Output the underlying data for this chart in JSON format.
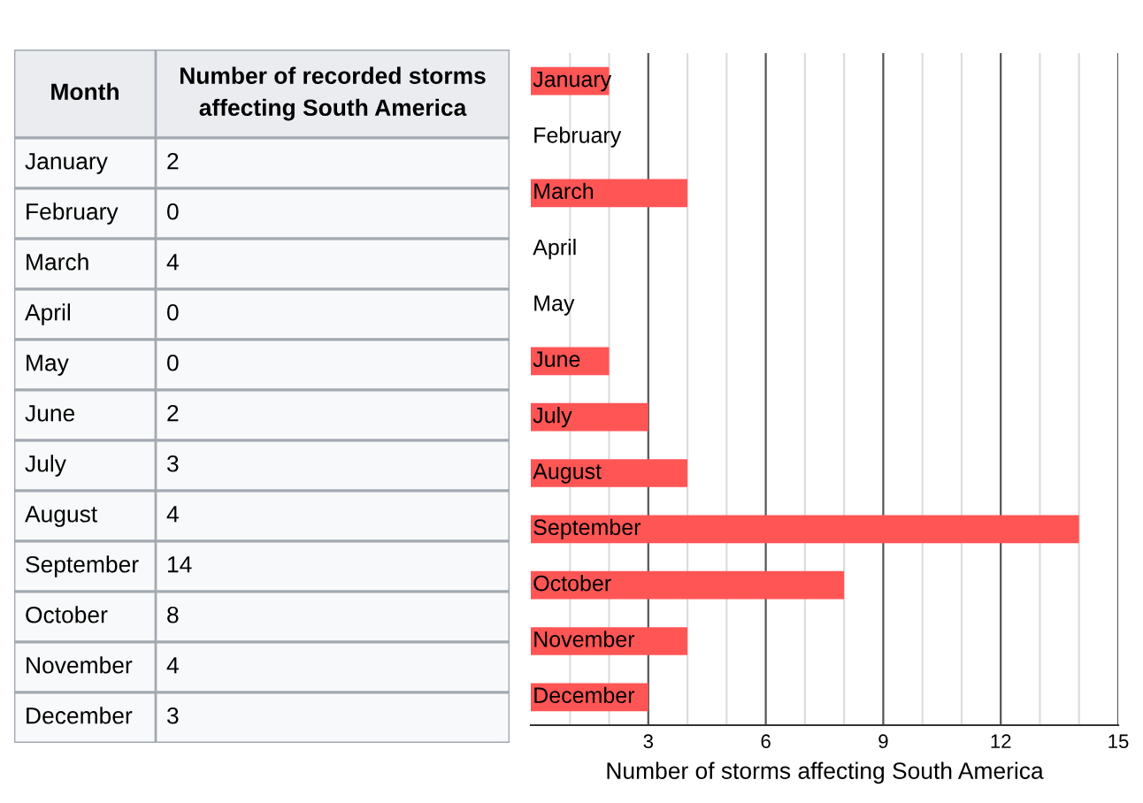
{
  "chart_data": [
    {
      "type": "other",
      "categories": [
        "January",
        "February",
        "March",
        "April",
        "May",
        "June",
        "July",
        "August",
        "September",
        "October",
        "November",
        "December"
      ],
      "values": [
        2,
        0,
        4,
        0,
        0,
        2,
        3,
        4,
        14,
        8,
        4,
        3
      ],
      "value_labels": [
        "2",
        "0",
        "4",
        "0",
        "0",
        "2",
        "3",
        "4",
        "14",
        "8",
        "4",
        "3"
      ],
      "annotations": [
        "Month",
        "Number of recorded storms affecting South America"
      ]
    },
    {
      "type": "bar",
      "orientation": "horizontal",
      "categories": [
        "January",
        "February",
        "March",
        "April",
        "May",
        "June",
        "July",
        "August",
        "September",
        "October",
        "November",
        "December"
      ],
      "values": [
        2,
        0,
        4,
        0,
        0,
        2,
        3,
        4,
        14,
        8,
        4,
        3
      ],
      "color": "#ff5555",
      "xlabel": "Number of storms affecting South America",
      "xlim": [
        0,
        15
      ],
      "xticks": [
        {
          "value": 1,
          "label": null
        },
        {
          "value": 2,
          "label": null
        },
        3,
        {
          "value": 4,
          "label": null
        },
        {
          "value": 5,
          "label": null
        },
        6,
        {
          "value": 7,
          "label": null
        },
        {
          "value": 8,
          "label": null
        },
        9,
        {
          "value": 10,
          "label": null
        },
        {
          "value": 11,
          "label": null
        },
        12,
        {
          "value": 13,
          "label": null
        },
        {
          "value": 14,
          "label": null
        },
        15
      ],
      "grid": "x"
    }
  ]
}
